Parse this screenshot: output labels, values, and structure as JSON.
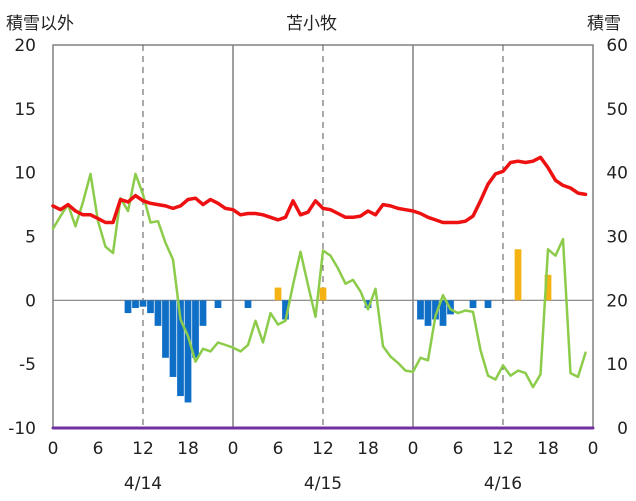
{
  "chart_data": {
    "type": "bar+line",
    "title": "苫小牧",
    "left_axis_title": "積雪以外",
    "right_axis_title": "積雪",
    "left_ylim": [
      -10,
      20
    ],
    "left_yticks": [
      "20",
      "15",
      "10",
      "5",
      "0",
      "-5",
      "-10"
    ],
    "right_ylim": [
      0,
      60
    ],
    "right_yticks": [
      "60",
      "50",
      "40",
      "30",
      "20",
      "10",
      "0"
    ],
    "x_range_hours": [
      0,
      72
    ],
    "x_tick_labels": [
      "0",
      "6",
      "12",
      "18",
      "0",
      "6",
      "12",
      "18",
      "0",
      "6",
      "12",
      "18",
      "0"
    ],
    "date_labels": [
      "4/14",
      "4/15",
      "4/16"
    ],
    "grid": "vertical dashed at 12h, solid at day boundaries",
    "colors": {
      "temperature": "#ee1111",
      "wind": "#8ccc4a",
      "snow_depth": "#7030a0",
      "precip_negative": "#0f6fc6",
      "precip_positive": "#f5b213",
      "frame": "#808080"
    },
    "series": [
      {
        "key": "temperature",
        "axis": "left",
        "x": [
          0,
          1,
          2,
          3,
          4,
          5,
          6,
          7,
          8,
          9,
          10,
          11,
          12,
          13,
          14,
          15,
          16,
          17,
          18,
          19,
          20,
          21,
          22,
          23,
          24,
          25,
          26,
          27,
          28,
          29,
          30,
          31,
          32,
          33,
          34,
          35,
          36,
          37,
          38,
          39,
          40,
          41,
          42,
          43,
          44,
          45,
          46,
          47,
          48,
          49,
          50,
          51,
          52,
          53,
          54,
          55,
          56,
          57,
          58,
          59,
          60,
          61,
          62,
          63,
          64,
          65,
          66,
          67,
          68,
          69,
          70,
          71
        ],
        "values": [
          7.4,
          7.1,
          7.5,
          7.0,
          6.7,
          6.7,
          6.4,
          6.1,
          6.1,
          7.9,
          7.7,
          8.2,
          7.8,
          7.6,
          7.5,
          7.4,
          7.2,
          7.4,
          7.9,
          8.0,
          7.5,
          7.9,
          7.6,
          7.2,
          7.1,
          6.7,
          6.8,
          6.8,
          6.7,
          6.5,
          6.3,
          6.5,
          7.8,
          6.7,
          6.9,
          7.8,
          7.2,
          7.1,
          6.8,
          6.5,
          6.5,
          6.6,
          7.0,
          6.7,
          7.5,
          7.4,
          7.2,
          7.1,
          7.0,
          6.8,
          6.5,
          6.3,
          6.1,
          6.1,
          6.1,
          6.2,
          6.6,
          7.8,
          9.1,
          9.9,
          10.1,
          10.8,
          10.9,
          10.8,
          10.9,
          11.2,
          10.4,
          9.4,
          9.0,
          8.8,
          8.4,
          8.3
        ]
      },
      {
        "key": "wind",
        "axis": "left",
        "x": [
          0,
          1,
          2,
          3,
          4,
          5,
          6,
          7,
          8,
          9,
          10,
          11,
          12,
          13,
          14,
          15,
          16,
          17,
          18,
          19,
          20,
          21,
          22,
          23,
          24,
          25,
          26,
          27,
          28,
          29,
          30,
          31,
          32,
          33,
          34,
          35,
          36,
          37,
          38,
          39,
          40,
          41,
          42,
          43,
          44,
          45,
          46,
          47,
          48,
          49,
          50,
          51,
          52,
          53,
          54,
          55,
          56,
          57,
          58,
          59,
          60,
          61,
          62,
          63,
          64,
          65,
          66,
          67,
          68,
          69,
          70,
          71
        ],
        "values": [
          5.6,
          6.6,
          7.5,
          5.8,
          7.7,
          9.9,
          6.2,
          4.2,
          3.7,
          8.0,
          7.0,
          9.9,
          8.3,
          6.1,
          6.2,
          4.5,
          3.2,
          -1.5,
          -2.8,
          -4.8,
          -3.8,
          -4.0,
          -3.3,
          -3.5,
          -3.7,
          -4.0,
          -3.5,
          -1.6,
          -3.3,
          -1.0,
          -1.9,
          -1.6,
          1.2,
          3.8,
          1.2,
          -1.3,
          3.9,
          3.5,
          2.5,
          1.3,
          1.6,
          0.7,
          -0.7,
          0.9,
          -3.6,
          -4.4,
          -4.9,
          -5.5,
          -5.6,
          -4.5,
          -4.7,
          -1.2,
          0.4,
          -0.7,
          -1.0,
          -0.8,
          -0.9,
          -3.9,
          -5.9,
          -6.2,
          -5.1,
          -5.9,
          -5.5,
          -5.7,
          -6.8,
          -5.8,
          4.0,
          3.5,
          4.8,
          -5.7,
          -6.0,
          -4.1
        ]
      },
      {
        "key": "snow_depth",
        "axis": "right",
        "x": [
          0,
          72
        ],
        "values": [
          0,
          0
        ]
      },
      {
        "key": "precip",
        "axis": "left",
        "x": [
          10,
          11,
          12,
          13,
          14,
          15,
          16,
          17,
          18,
          19,
          20,
          22,
          26,
          30,
          31,
          36,
          42,
          49,
          50,
          51,
          52,
          53,
          56,
          58,
          62,
          66
        ],
        "values": [
          -1,
          -0.6,
          -0.5,
          -1,
          -2,
          -4.5,
          -6,
          -7.5,
          -8,
          -4.5,
          -2,
          -0.6,
          -0.6,
          1,
          -1.5,
          1,
          -0.6,
          -1.5,
          -2,
          -1.5,
          -2,
          -1.1,
          -0.6,
          -0.6,
          4,
          2
        ]
      }
    ]
  }
}
